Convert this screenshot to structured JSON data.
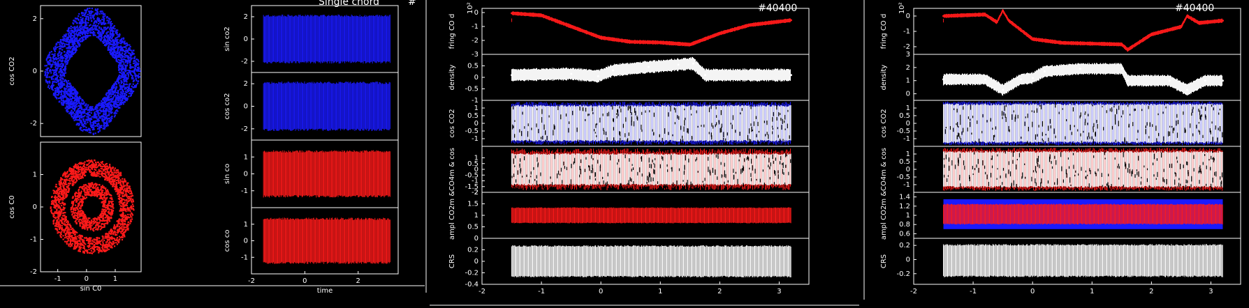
{
  "colors": {
    "blue": "#1a1aff",
    "red": "#ff1a1a",
    "white": "#ffffff",
    "background": "#000000",
    "axis": "#ffffff"
  },
  "header": {
    "title": "Single chord",
    "hash": "#",
    "shot1": "#40400",
    "shot2": "#40400"
  },
  "chart_data": [
    {
      "id": "scatter-co2",
      "type": "scatter",
      "xlabel": "",
      "ylabel": "cos CO2",
      "xlim": [
        -1.6,
        1.9
      ],
      "ylim": [
        -2.5,
        2.5
      ],
      "color": "blue",
      "yticks": [
        "2",
        "0",
        "-2"
      ],
      "description": "ring of points centred near (0.2,0), outer radius ~1.4, inner radius ~0.8"
    },
    {
      "id": "scatter-co",
      "type": "scatter",
      "xlabel": "sin C0",
      "ylabel": "cos C0",
      "xlim": [
        -1.6,
        1.9
      ],
      "ylim": [
        -2,
        2
      ],
      "color": "red",
      "xticks": [
        "-1",
        "0",
        "1"
      ],
      "yticks": [
        "1",
        "0",
        "-1",
        "-2"
      ],
      "description": "two concentric rings centred near (0.2,0), outer radius ~1.4, inner radius ~0.6"
    },
    {
      "id": "ts-sin-co2",
      "type": "area",
      "ylabel": "sin co2",
      "xlim": [
        -2,
        3.5
      ],
      "ylim": [
        -3,
        3
      ],
      "yticks": [
        "2",
        "0",
        "-2"
      ],
      "color": "blue",
      "x_range": [
        -1.55,
        3.2
      ],
      "band": [
        -2.2,
        2.2
      ]
    },
    {
      "id": "ts-cos-co2",
      "type": "area",
      "ylabel": "cos co2",
      "xlim": [
        -2,
        3.5
      ],
      "ylim": [
        -3,
        3
      ],
      "yticks": [
        "2",
        "0",
        "-2"
      ],
      "color": "blue",
      "x_range": [
        -1.55,
        3.2
      ],
      "band": [
        -2.2,
        2.2
      ]
    },
    {
      "id": "ts-sin-co",
      "type": "area",
      "ylabel": "sin co",
      "xlim": [
        -2,
        3.5
      ],
      "ylim": [
        -2,
        2
      ],
      "yticks": [
        "1",
        "0",
        "-1"
      ],
      "color": "red",
      "x_range": [
        -1.55,
        3.2
      ],
      "band": [
        -1.4,
        1.4
      ]
    },
    {
      "id": "ts-cos-co",
      "type": "area",
      "xlabel": "time",
      "ylabel": "cos co",
      "xlim": [
        -2,
        3.5
      ],
      "ylim": [
        -2,
        2
      ],
      "yticks": [
        "1",
        "0",
        "-1"
      ],
      "xticks": [
        "-2",
        "0",
        "2"
      ],
      "color": "red",
      "x_range": [
        -1.55,
        3.2
      ],
      "band": [
        -1.4,
        1.4
      ]
    },
    {
      "id": "s1-fring",
      "type": "line",
      "ylabel": "fring CO d",
      "yexp": "10²",
      "xlim": [
        -2,
        3.5
      ],
      "ylim": [
        -3,
        0.3
      ],
      "yticks": [
        "0",
        "-1",
        "-2",
        "-3"
      ],
      "color": "red",
      "x": [
        -1.5,
        -1.0,
        -0.5,
        0.0,
        0.5,
        1.0,
        1.5,
        2.0,
        2.5,
        3.2
      ],
      "y": [
        -0.05,
        -0.2,
        -1.0,
        -1.8,
        -2.1,
        -2.15,
        -2.3,
        -1.5,
        -0.9,
        -0.55
      ]
    },
    {
      "id": "s1-density",
      "type": "line",
      "ylabel": "density",
      "xlim": [
        -2,
        3.5
      ],
      "ylim": [
        -1,
        1
      ],
      "yticks": [
        "0.5",
        "0",
        "-0.5",
        "-1"
      ],
      "color": "white",
      "x": [
        -1.5,
        -0.5,
        -0.05,
        0.2,
        0.8,
        1.3,
        1.55,
        1.75,
        3.2
      ],
      "y": [
        0.1,
        0.15,
        0.05,
        0.3,
        0.45,
        0.55,
        0.6,
        0.1,
        0.1
      ],
      "band_half": 0.25
    },
    {
      "id": "s1-co2",
      "type": "area",
      "ylabel": "cos CO2",
      "xlim": [
        -2,
        3.5
      ],
      "ylim": [
        -1.5,
        1.5
      ],
      "yticks": [
        "1",
        "0.5",
        "0",
        "-0.5",
        "-1"
      ],
      "color": "white",
      "edge": "blue",
      "x_range": [
        -1.5,
        3.2
      ],
      "band": [
        -1.2,
        1.2
      ]
    },
    {
      "id": "s1-co",
      "type": "area",
      "ylabel": "CO4m & cos",
      "xlim": [
        -2,
        3.5
      ],
      "ylim": [
        -2,
        2
      ],
      "yticks": [
        "1",
        "0.5",
        "0",
        "-0.5",
        "-1",
        "-1.5",
        "-2"
      ],
      "color": "white",
      "edge": "red",
      "x_range": [
        -1.5,
        3.2
      ],
      "band": [
        -1.4,
        1.4
      ]
    },
    {
      "id": "s1-ampl",
      "type": "area",
      "ylabel": "ampl CO2m &",
      "xlim": [
        -2,
        3.5
      ],
      "ylim": [
        0,
        2
      ],
      "yticks": [
        "2",
        "1.5",
        "1",
        "0.5",
        "0"
      ],
      "color": "red",
      "x_range": [
        -1.5,
        3.2
      ],
      "band": [
        0.65,
        1.35
      ]
    },
    {
      "id": "s1-crs",
      "type": "area",
      "ylabel": "CRS",
      "xlabel": "",
      "xlim": [
        -2,
        3.5
      ],
      "ylim": [
        -0.4,
        0.4
      ],
      "yticks": [
        "0.2",
        "0",
        "-0.2",
        "-0.4"
      ],
      "xticks": [
        "-2",
        "-1",
        "0",
        "1",
        "2",
        "3"
      ],
      "color": "white",
      "x_range": [
        -1.5,
        3.2
      ],
      "band": [
        -0.28,
        0.28
      ]
    },
    {
      "id": "s2-fring",
      "type": "line",
      "ylabel": "fring CO d",
      "yexp": "10²",
      "xlim": [
        -2,
        3.5
      ],
      "ylim": [
        -2.5,
        0.5
      ],
      "yticks": [
        "0",
        "-1",
        "-2"
      ],
      "color": "red",
      "x": [
        -1.5,
        -0.8,
        -0.6,
        -0.5,
        -0.4,
        0.0,
        0.5,
        1.0,
        1.5,
        1.6,
        2.0,
        2.5,
        2.6,
        2.8,
        3.2
      ],
      "y": [
        0.0,
        0.1,
        -0.4,
        0.35,
        -0.3,
        -1.5,
        -1.75,
        -1.8,
        -1.85,
        -2.2,
        -1.2,
        -0.7,
        0.0,
        -0.45,
        -0.3
      ]
    },
    {
      "id": "s2-density",
      "type": "line",
      "ylabel": "density",
      "xlim": [
        -2,
        3.5
      ],
      "ylim": [
        -0.5,
        3
      ],
      "yticks": [
        "3",
        "2",
        "1",
        "0"
      ],
      "color": "white",
      "x": [
        -1.5,
        -0.8,
        -0.5,
        -0.2,
        0.0,
        0.2,
        0.8,
        1.5,
        1.6,
        2.3,
        2.6,
        2.9,
        3.2
      ],
      "y": [
        1.1,
        1.1,
        0.3,
        1.1,
        1.2,
        1.7,
        1.9,
        1.9,
        1.0,
        1.0,
        0.3,
        1.0,
        1.0
      ],
      "band_half": 0.4
    },
    {
      "id": "s2-co2",
      "type": "area",
      "ylabel": "cos CO2",
      "xlim": [
        -2,
        3.5
      ],
      "ylim": [
        -1.5,
        1.5
      ],
      "yticks": [
        "1",
        "0.5",
        "0",
        "-0.5",
        "-1"
      ],
      "color": "white",
      "edge": "blue",
      "x_range": [
        -1.5,
        3.2
      ],
      "band": [
        -1.3,
        1.3
      ]
    },
    {
      "id": "s2-co",
      "type": "area",
      "ylabel": "CO4m & cos",
      "xlim": [
        -2,
        3.5
      ],
      "ylim": [
        -1.5,
        1.5
      ],
      "yticks": [
        "1",
        "0.5",
        "0",
        "-0.5",
        "-1"
      ],
      "color": "white",
      "edge": "red",
      "x_range": [
        -1.5,
        3.2
      ],
      "band": [
        -1.2,
        1.2
      ]
    },
    {
      "id": "s2-ampl",
      "type": "area",
      "ylabel": "ampl CO2m &",
      "xlim": [
        -2,
        3.5
      ],
      "ylim": [
        0.5,
        1.5
      ],
      "yticks": [
        "1.4",
        "1.2",
        "1",
        "0.8",
        "0.6"
      ],
      "color": "red",
      "x_range": [
        -1.5,
        3.2
      ],
      "band": [
        0.8,
        1.25
      ],
      "band2": [
        0.7,
        1.35
      ]
    },
    {
      "id": "s2-crs",
      "type": "area",
      "ylabel": "CRS",
      "xlabel": "",
      "xlim": [
        -2,
        3.5
      ],
      "ylim": [
        -0.35,
        0.3
      ],
      "yticks": [
        "0.2",
        "0",
        "-0.2"
      ],
      "xticks": [
        "-2",
        "-1",
        "0",
        "1",
        "2",
        "3"
      ],
      "color": "white",
      "x_range": [
        -1.5,
        3.2
      ],
      "band": [
        -0.25,
        0.22
      ]
    }
  ]
}
